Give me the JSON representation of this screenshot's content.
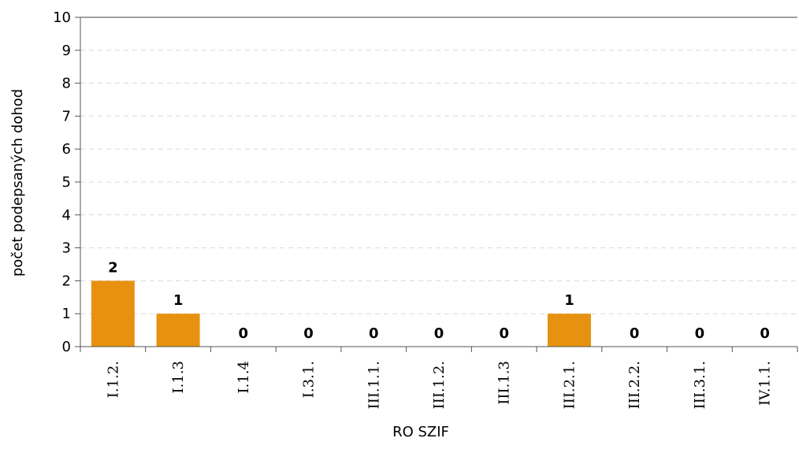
{
  "chart_data": {
    "type": "bar",
    "categories": [
      "I.1.2.",
      "I.1.3",
      "I.1.4",
      "I.3.1.",
      "III.1.1.",
      "III.1.2.",
      "III.1.3",
      "III.2.1.",
      "III.2.2.",
      "III.3.1.",
      "IV.1.1."
    ],
    "values": [
      2,
      1,
      0,
      0,
      0,
      0,
      0,
      1,
      0,
      0,
      0
    ],
    "xlabel": "RO SZIF",
    "ylabel": "počet podepsaných dohod",
    "ylim": [
      0,
      10
    ],
    "yticks": [
      0,
      1,
      2,
      3,
      4,
      5,
      6,
      7,
      8,
      9,
      10
    ],
    "bar_color": "#E69210",
    "grid": true,
    "legend": false
  }
}
